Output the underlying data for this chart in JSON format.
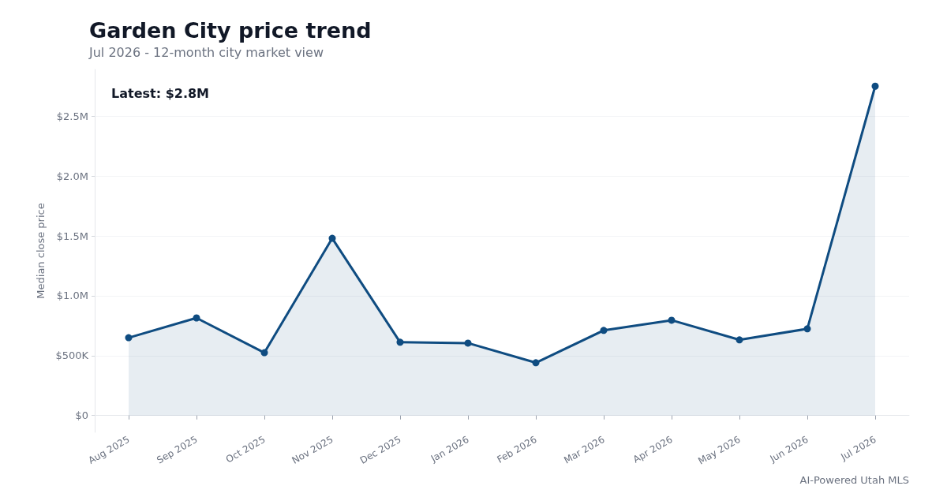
{
  "chart_data": {
    "type": "area",
    "title": "Garden City price trend",
    "subtitle": "Jul 2026 - 12-month city market view",
    "ylabel": "Median close price",
    "categories": [
      "Aug 2025",
      "Sep 2025",
      "Oct 2025",
      "Nov 2025",
      "Dec 2025",
      "Jan 2026",
      "Feb 2026",
      "Mar 2026",
      "Apr 2026",
      "May 2026",
      "Jun 2026",
      "Jul 2026"
    ],
    "series": [
      {
        "color": "#0f4c81",
        "values": [
          650000,
          815000,
          525000,
          1480000,
          612000,
          605000,
          441000,
          711000,
          796000,
          632000,
          724000,
          2750000
        ]
      }
    ],
    "ylim": [
      -140000,
      2890000
    ],
    "yticks": [
      {
        "value": 0,
        "label": "$0"
      },
      {
        "value": 500000,
        "label": "$500K"
      },
      {
        "value": 1000000,
        "label": "$1.0M"
      },
      {
        "value": 1500000,
        "label": "$1.5M"
      },
      {
        "value": 2000000,
        "label": "$2.0M"
      },
      {
        "value": 2500000,
        "label": "$2.5M"
      }
    ],
    "grid": "y",
    "marker": "circle",
    "line_style": "solid",
    "annotations": [
      "Latest: $2.8M",
      "AI-Powered Utah MLS"
    ]
  }
}
